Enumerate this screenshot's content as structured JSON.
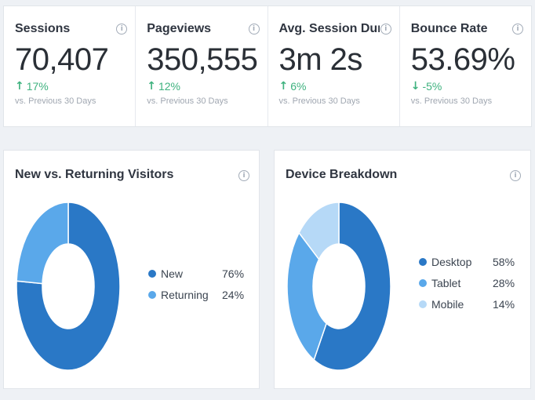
{
  "stats": [
    {
      "label": "Sessions",
      "value": "70,407",
      "change": "17%",
      "direction": "up",
      "compare": "vs. Previous 30 Days"
    },
    {
      "label": "Pageviews",
      "value": "350,555",
      "change": "12%",
      "direction": "up",
      "compare": "vs. Previous 30 Days"
    },
    {
      "label": "Avg. Session Durat…",
      "value": "3m 2s",
      "change": "6%",
      "direction": "up",
      "compare": "vs. Previous 30 Days"
    },
    {
      "label": "Bounce Rate",
      "value": "53.69%",
      "change": "-5%",
      "direction": "down",
      "compare": "vs. Previous 30 Days"
    }
  ],
  "icons": {
    "info": "i",
    "arrow_up": "↑",
    "arrow_down": "↓"
  },
  "visitors": {
    "title": "New vs. Returning Visitors",
    "segments": [
      {
        "label": "New",
        "percent": "76%",
        "value": 76,
        "color": "#2a78c6"
      },
      {
        "label": "Returning",
        "percent": "24%",
        "value": 24,
        "color": "#5aa8ea"
      }
    ]
  },
  "devices": {
    "title": "Device Breakdown",
    "segments": [
      {
        "label": "Desktop",
        "percent": "58%",
        "value": 58,
        "color": "#2a78c6"
      },
      {
        "label": "Tablet",
        "percent": "28%",
        "value": 28,
        "color": "#5aa8ea"
      },
      {
        "label": "Mobile",
        "percent": "14%",
        "value": 14,
        "color": "#b6d9f7"
      }
    ]
  }
}
